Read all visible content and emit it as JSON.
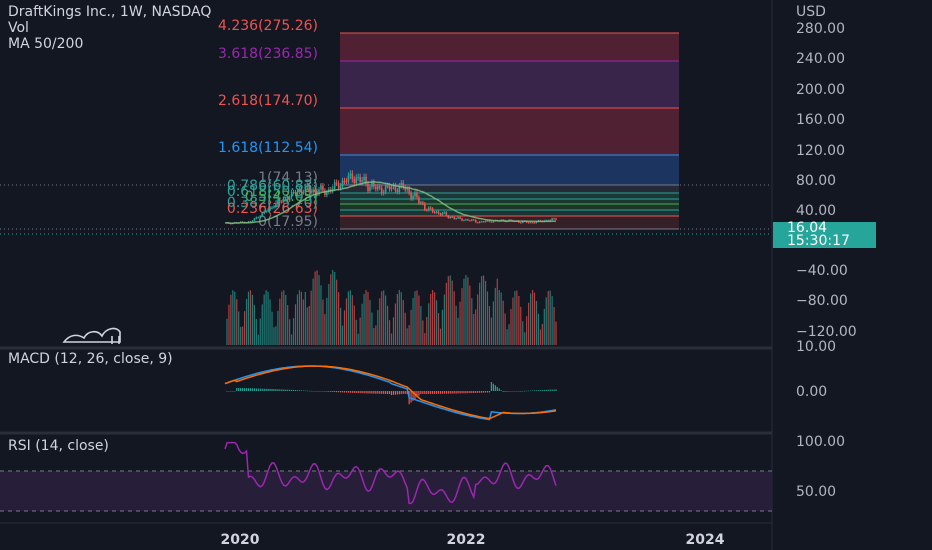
{
  "header": {
    "title": "DraftKings Inc., 1W, NASDAQ",
    "vol_label": "Vol",
    "ma_label": "MA 50/200"
  },
  "colors": {
    "background": "#131722",
    "up": "#26a69a",
    "down": "#ef5350",
    "macd_line": "#2196f3",
    "signal_line": "#ff6d00",
    "rsi_line": "#9c27b0",
    "rsi_band": "#2a1f3d"
  },
  "price_axis": {
    "currency": "USD",
    "ticks": [
      "280.00",
      "240.00",
      "200.00",
      "160.00",
      "120.00",
      "80.00",
      "40.00",
      "−40.00",
      "−80.00",
      "−120.00"
    ],
    "current_price": "16.04",
    "countdown": "15:30:17"
  },
  "fib_levels": [
    {
      "label": "4.236(275.26)",
      "color": "#ef5350",
      "fill": "#5a2336"
    },
    {
      "label": "3.618(236.85)",
      "color": "#9c27b0",
      "fill": "#3f2850"
    },
    {
      "label": "2.618(174.70)",
      "color": "#ef5350",
      "fill": "#5a2336"
    },
    {
      "label": "1.618(112.54)",
      "color": "#2196f3",
      "fill": "#1f3a6b"
    },
    {
      "label": "1(74.13)",
      "color": "#787b86",
      "fill": "#2a2e39"
    },
    {
      "label": "0.786(60.83)",
      "color": "#26a69a",
      "fill": "#1d3d3a"
    },
    {
      "label": "0.618(50.39)",
      "color": "#26a69a",
      "fill": "#1e3d33"
    },
    {
      "label": "0.5(43.05)",
      "color": "#4caf50",
      "fill": "#1f3a2a"
    },
    {
      "label": "0.382(35.70)",
      "color": "#26a69a",
      "fill": "#1e3a36"
    },
    {
      "label": "0.236(26.63)",
      "color": "#ef5350",
      "fill": "#3d2228"
    },
    {
      "label": "0(17.95)",
      "color": "#787b86",
      "fill": "#2a2e39"
    }
  ],
  "macd": {
    "title": "MACD (12, 26, close, 9)",
    "axis_ticks": [
      "10.00",
      "0.00"
    ]
  },
  "rsi": {
    "title": "RSI (14, close)",
    "axis_ticks": [
      "100.00",
      "50.00"
    ]
  },
  "time_axis": {
    "ticks": [
      "2020",
      "2022",
      "2024"
    ]
  },
  "chart_data": {
    "type": "line",
    "series": [
      {
        "name": "DraftKings Inc.",
        "x": [
          "2019-12",
          "2020-03",
          "2020-06",
          "2020-09",
          "2020-12",
          "2021-03",
          "2021-06",
          "2021-09",
          "2021-12",
          "2022-03",
          "2022-06",
          "2022-09",
          "2022-12",
          "2023-03"
        ],
        "values": [
          10,
          12,
          35,
          55,
          52,
          72,
          55,
          58,
          28,
          17,
          12,
          14,
          11,
          16
        ]
      }
    ],
    "y_axis_ticks": [
      280,
      240,
      200,
      160,
      120,
      80,
      40,
      -40,
      -80,
      -120
    ]
  }
}
